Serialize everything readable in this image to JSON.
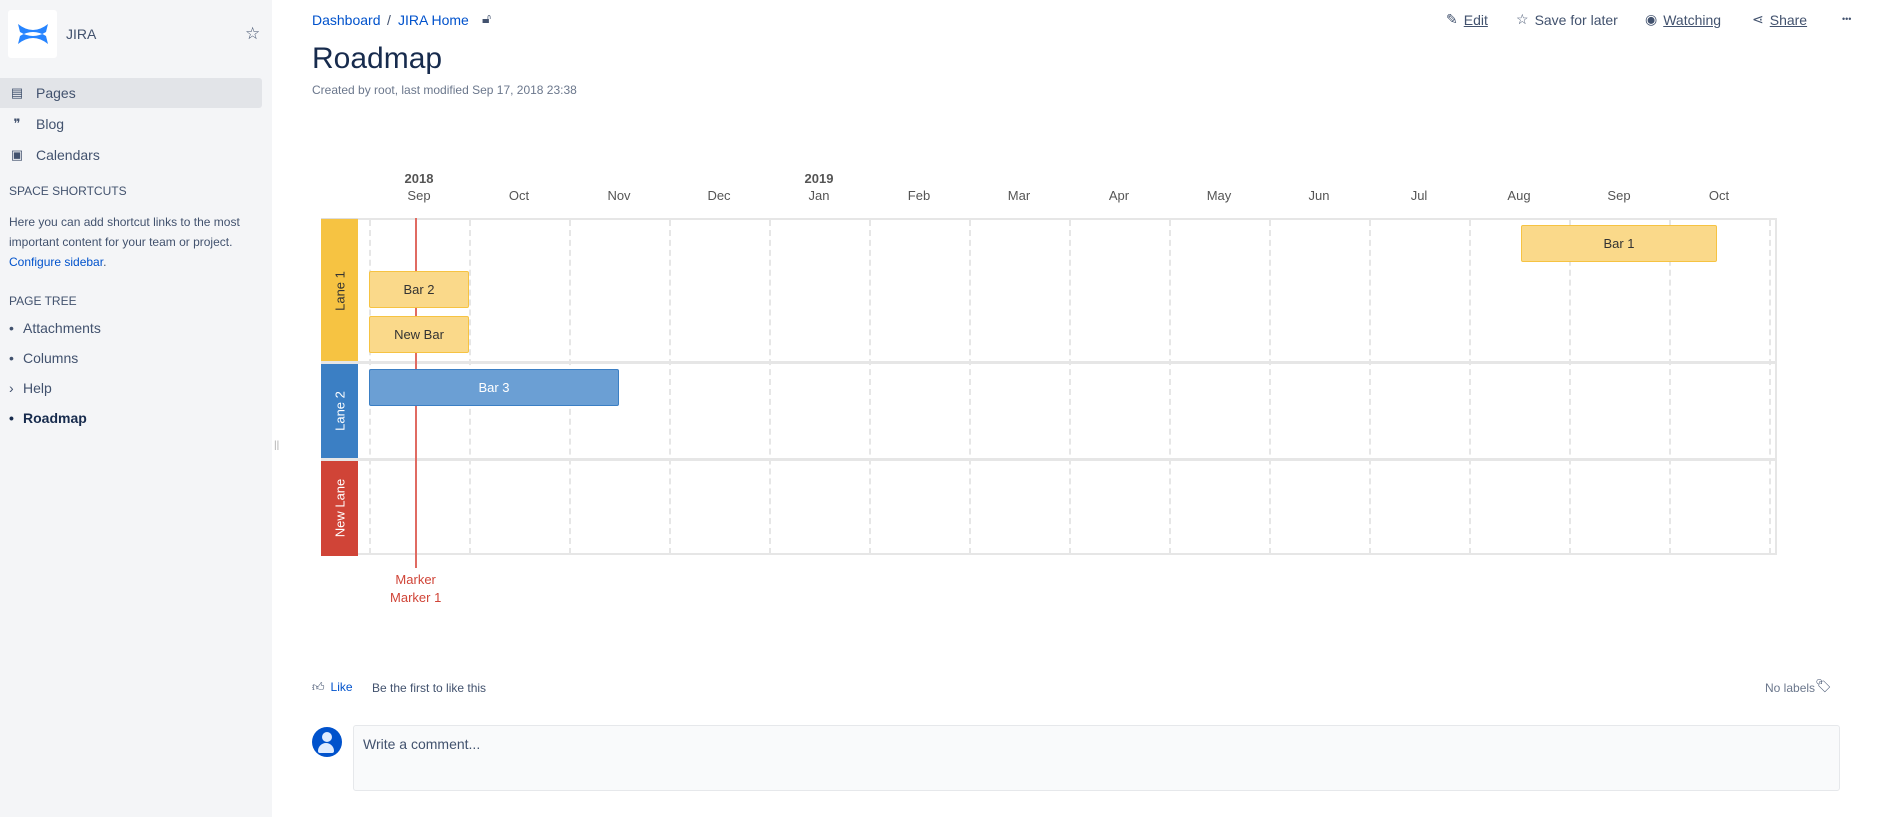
{
  "sidebar": {
    "space_name": "JIRA",
    "nav": [
      {
        "label": "Pages",
        "icon": "pages-icon",
        "active": true
      },
      {
        "label": "Blog",
        "icon": "quote-icon"
      },
      {
        "label": "Calendars",
        "icon": "calendar-icon"
      }
    ],
    "shortcuts_heading": "SPACE SHORTCUTS",
    "shortcuts_text": "Here you can add shortcut links to the most important content for your team or project.",
    "configure_link": "Configure sidebar",
    "tree_heading": "PAGE TREE",
    "tree": [
      {
        "label": "Attachments",
        "bullet": "•"
      },
      {
        "label": "Columns",
        "bullet": "•"
      },
      {
        "label": "Help",
        "bullet": "›"
      },
      {
        "label": "Roadmap",
        "bullet": "•",
        "current": true
      }
    ]
  },
  "breadcrumb": [
    "Dashboard",
    "JIRA Home"
  ],
  "actions": {
    "edit": "Edit",
    "save": "Save for later",
    "watching": "Watching",
    "share": "Share",
    "more": "•••"
  },
  "page": {
    "title": "Roadmap",
    "meta": "Created by root, last modified Sep 17, 2018 23:38"
  },
  "chart_data": {
    "type": "roadmap",
    "months": [
      "Sep",
      "Oct",
      "Nov",
      "Dec",
      "Jan",
      "Feb",
      "Mar",
      "Apr",
      "May",
      "Jun",
      "Jul",
      "Aug",
      "Sep",
      "Oct"
    ],
    "years": [
      {
        "label": "2018",
        "month_index": 0
      },
      {
        "label": "2019",
        "month_index": 4
      }
    ],
    "start": "2018-09-01",
    "end": "2019-10-31",
    "lanes": [
      {
        "title": "Lane 1",
        "color": "#f6c342",
        "text": "#333333"
      },
      {
        "title": "Lane 2",
        "color": "#3b7fc4",
        "text": "#ffffff"
      },
      {
        "title": "New Lane",
        "color": "#d04437",
        "text": "#ffffff"
      }
    ],
    "bars": [
      {
        "title": "Bar 1",
        "lane": 0,
        "row": 0,
        "start": "2019-08-17",
        "end": "2019-10-16",
        "color": "#fad98a",
        "border": "#f6c342",
        "text": "#333333"
      },
      {
        "title": "Bar 2",
        "lane": 0,
        "row": 1,
        "start": "2018-09-01",
        "end": "2018-10-01",
        "color": "#fad98a",
        "border": "#f6c342",
        "text": "#333333"
      },
      {
        "title": "New Bar",
        "lane": 0,
        "row": 2,
        "start": "2018-09-01",
        "end": "2018-10-01",
        "color": "#fad98a",
        "border": "#f6c342",
        "text": "#333333"
      },
      {
        "title": "Bar 3",
        "lane": 1,
        "row": 0,
        "start": "2018-09-01",
        "end": "2018-11-16",
        "color": "#6b9fd4",
        "border": "#3b7fc4",
        "text": "#ffffff"
      }
    ],
    "markers": [
      {
        "title": "Marker",
        "date": "2018-09-15"
      },
      {
        "title": "Marker 1",
        "date": "2018-09-15"
      }
    ],
    "marker_color": "#d04437"
  },
  "footer": {
    "like": "Like",
    "like_text": "Be the first to like this",
    "labels": "No labels",
    "comment_placeholder": "Write a comment..."
  }
}
